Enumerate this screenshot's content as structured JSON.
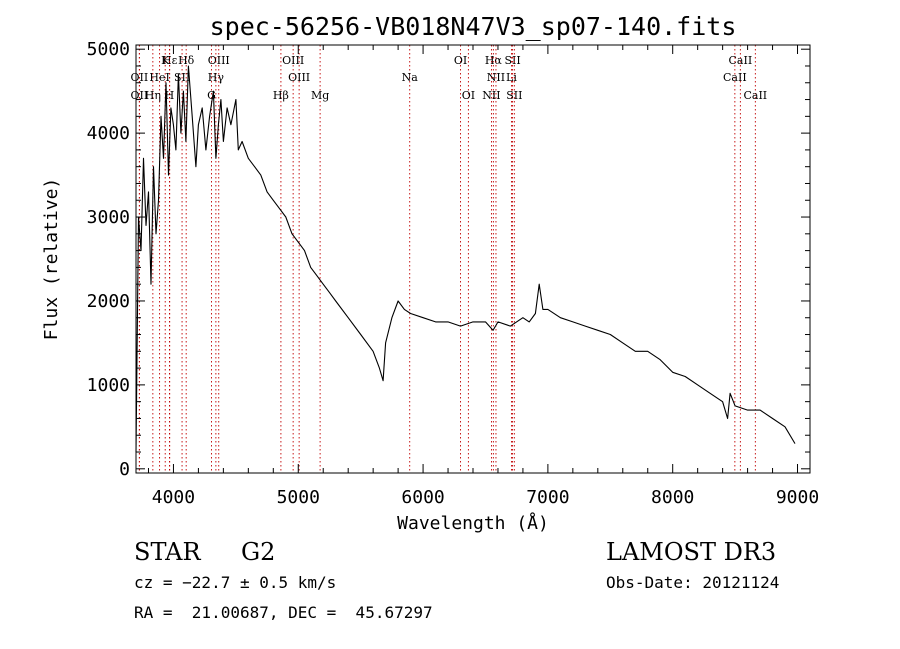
{
  "chart_data": {
    "type": "line",
    "title": "spec-56256-VB018N47V3_sp07-140.fits",
    "xlabel": "Wavelength (Å)",
    "ylabel": "Flux (relative)",
    "xlim": [
      3700,
      9100
    ],
    "ylim": [
      -50,
      5050
    ],
    "x_ticks": [
      4000,
      5000,
      6000,
      7000,
      8000,
      9000
    ],
    "y_ticks": [
      0,
      1000,
      2000,
      3000,
      4000,
      5000
    ],
    "series": [
      {
        "name": "flux",
        "color": "#000000",
        "x": [
          3700,
          3720,
          3740,
          3760,
          3780,
          3800,
          3820,
          3840,
          3860,
          3880,
          3900,
          3920,
          3940,
          3960,
          3980,
          4000,
          4020,
          4040,
          4060,
          4080,
          4100,
          4120,
          4150,
          4180,
          4200,
          4230,
          4260,
          4290,
          4320,
          4340,
          4360,
          4380,
          4400,
          4430,
          4460,
          4500,
          4520,
          4550,
          4600,
          4650,
          4700,
          4750,
          4800,
          4850,
          4900,
          4950,
          5000,
          5050,
          5100,
          5150,
          5200,
          5250,
          5300,
          5400,
          5500,
          5600,
          5650,
          5680,
          5700,
          5750,
          5800,
          5850,
          5900,
          6000,
          6100,
          6200,
          6300,
          6400,
          6500,
          6560,
          6600,
          6700,
          6800,
          6850,
          6900,
          6930,
          6960,
          7000,
          7100,
          7200,
          7300,
          7400,
          7500,
          7600,
          7700,
          7800,
          7900,
          8000,
          8100,
          8200,
          8300,
          8400,
          8440,
          8460,
          8500,
          8600,
          8700,
          8800,
          8900,
          8980
        ],
        "y": [
          200,
          3000,
          2600,
          3700,
          2900,
          3300,
          2200,
          3600,
          2800,
          3200,
          4200,
          3700,
          4600,
          3500,
          4300,
          4100,
          3800,
          4700,
          4000,
          4500,
          3900,
          4800,
          4200,
          3600,
          4100,
          4300,
          3800,
          4200,
          4500,
          3700,
          4100,
          4400,
          3900,
          4300,
          4100,
          4400,
          3800,
          3900,
          3700,
          3600,
          3500,
          3300,
          3200,
          3100,
          3000,
          2800,
          2700,
          2600,
          2400,
          2300,
          2200,
          2100,
          2000,
          1800,
          1600,
          1400,
          1200,
          1050,
          1500,
          1800,
          2000,
          1900,
          1850,
          1800,
          1750,
          1750,
          1700,
          1750,
          1750,
          1650,
          1750,
          1700,
          1800,
          1750,
          1850,
          2200,
          1900,
          1900,
          1800,
          1750,
          1700,
          1650,
          1600,
          1500,
          1400,
          1400,
          1300,
          1150,
          1100,
          1000,
          900,
          800,
          600,
          900,
          750,
          700,
          700,
          600,
          500,
          300
        ]
      }
    ],
    "lines": [
      {
        "name": "Hε",
        "x": 3970,
        "row": 0
      },
      {
        "name": "K",
        "x": 3934,
        "row": 0
      },
      {
        "name": "Hδ",
        "x": 4102,
        "row": 0
      },
      {
        "name": "OIII",
        "x": 4363,
        "row": 0
      },
      {
        "name": "OIII",
        "x": 4959,
        "row": 0
      },
      {
        "name": "OI",
        "x": 6300,
        "row": 0
      },
      {
        "name": "Hα",
        "x": 6563,
        "row": 0
      },
      {
        "name": "SII",
        "x": 6717,
        "row": 0
      },
      {
        "name": "CaII",
        "x": 8542,
        "row": 0
      },
      {
        "name": "OII",
        "x": 3727,
        "row": 1
      },
      {
        "name": "HeI",
        "x": 3889,
        "row": 1
      },
      {
        "name": "SII",
        "x": 4069,
        "row": 1
      },
      {
        "name": "Hγ",
        "x": 4340,
        "row": 1
      },
      {
        "name": "OIII",
        "x": 5007,
        "row": 1
      },
      {
        "name": "Na",
        "x": 5893,
        "row": 1
      },
      {
        "name": "NII",
        "x": 6584,
        "row": 1
      },
      {
        "name": "Li",
        "x": 6708,
        "row": 1
      },
      {
        "name": "CaII",
        "x": 8498,
        "row": 1
      },
      {
        "name": "OII",
        "x": 3727,
        "row": 2
      },
      {
        "name": "Hη",
        "x": 3835,
        "row": 2
      },
      {
        "name": "H",
        "x": 3968,
        "row": 2
      },
      {
        "name": "G",
        "x": 4305,
        "row": 2
      },
      {
        "name": "Hβ",
        "x": 4861,
        "row": 2
      },
      {
        "name": "Mg",
        "x": 5175,
        "row": 2
      },
      {
        "name": "OI",
        "x": 6363,
        "row": 2
      },
      {
        "name": "NII",
        "x": 6548,
        "row": 2
      },
      {
        "name": "SII",
        "x": 6731,
        "row": 2
      },
      {
        "name": "CaII",
        "x": 8662,
        "row": 2
      }
    ]
  },
  "info": {
    "class": "STAR",
    "subclass": "G2",
    "survey": "LAMOST DR3",
    "cz": "cz = −22.7 ± 0.5 km/s",
    "obs_date": "Obs-Date: 20121124",
    "coords": "RA =  21.00687, DEC =  45.67297"
  }
}
